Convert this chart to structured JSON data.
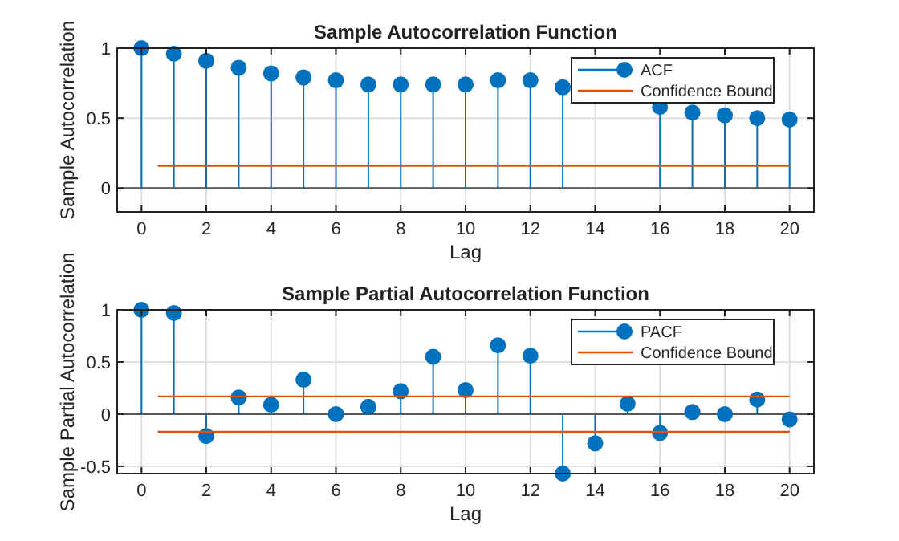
{
  "chart_data": [
    {
      "type": "lollipop",
      "title": "Sample Autocorrelation Function",
      "xlabel": "Lag",
      "ylabel": "Sample Autocorrelation",
      "series": [
        {
          "name": "ACF",
          "color": "#0072bd",
          "x": [
            0,
            1,
            2,
            3,
            4,
            5,
            6,
            7,
            8,
            9,
            10,
            11,
            12,
            13,
            16,
            17,
            18,
            19,
            20
          ],
          "values": [
            1.0,
            0.96,
            0.91,
            0.86,
            0.82,
            0.79,
            0.77,
            0.74,
            0.74,
            0.74,
            0.74,
            0.77,
            0.77,
            0.72,
            0.58,
            0.54,
            0.52,
            0.5,
            0.49
          ]
        },
        {
          "name": "Confidence Bound",
          "type": "line",
          "marker": "none",
          "color": "#d95319",
          "x": [
            0.5,
            20
          ],
          "values": [
            0.16,
            0.16
          ]
        }
      ],
      "xlim": [
        -0.75,
        20.75
      ],
      "ylim": [
        -0.17,
        1
      ],
      "xticks": [
        0,
        2,
        4,
        6,
        8,
        10,
        12,
        14,
        16,
        18,
        20
      ],
      "yticks": [
        0,
        0.5,
        1
      ],
      "grid": true,
      "legend": "top right",
      "marker": "circle"
    },
    {
      "type": "lollipop",
      "title": "Sample Partial Autocorrelation Function",
      "xlabel": "Lag",
      "ylabel": "Sample Partial Autocorrelation",
      "x": [
        0,
        1,
        2,
        3,
        4,
        5,
        6,
        7,
        8,
        9,
        10,
        11,
        12,
        13,
        14,
        15,
        16,
        17,
        18,
        19,
        20
      ],
      "series": [
        {
          "name": "PACF",
          "color": "#0072bd",
          "values": [
            1.0,
            0.97,
            -0.21,
            0.16,
            0.09,
            0.33,
            0,
            0.07,
            0.22,
            0.55,
            0.23,
            0.66,
            0.56,
            -0.57,
            -0.28,
            0.1,
            -0.18,
            0.02,
            0,
            0.14,
            -0.05
          ]
        },
        {
          "name": "Confidence Bound",
          "type": "line",
          "marker": "none",
          "color": "#d95319",
          "x": [
            0.5,
            20
          ],
          "values": [
            0.17,
            0.17
          ]
        },
        {
          "type": "line",
          "marker": "none",
          "color": "#d95319",
          "x": [
            0.5,
            20
          ],
          "values": [
            -0.17,
            -0.17
          ]
        }
      ],
      "xlim": [
        -0.75,
        20.75
      ],
      "ylim": [
        -0.57,
        1
      ],
      "xticks": [
        0,
        2,
        4,
        6,
        8,
        10,
        12,
        14,
        16,
        18,
        20
      ],
      "yticks": [
        -0.5,
        0,
        0.5,
        1
      ],
      "grid": true,
      "legend": "top right",
      "marker": "circle"
    }
  ]
}
